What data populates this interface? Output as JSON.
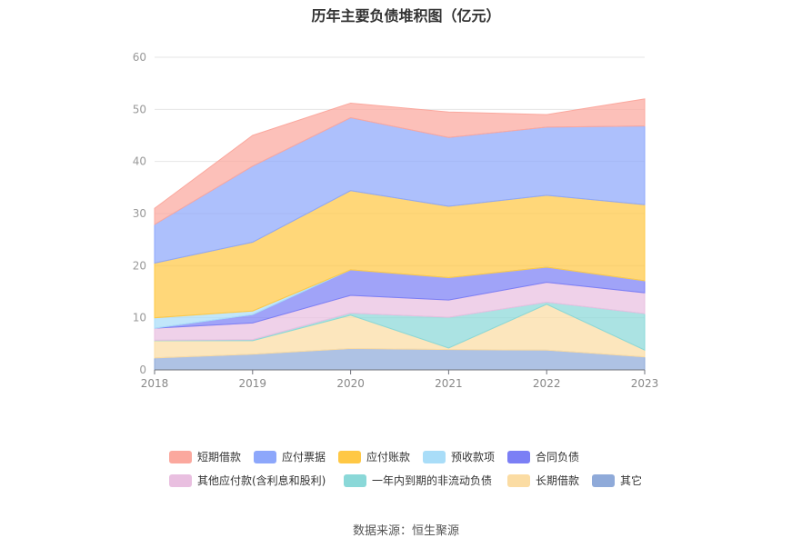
{
  "title": "历年主要负债堆积图（亿元）",
  "source": "数据来源：恒生聚源",
  "chart_data": {
    "type": "area",
    "stacked": true,
    "categories": [
      "2018",
      "2019",
      "2020",
      "2021",
      "2022",
      "2023"
    ],
    "ylim": [
      0,
      60
    ],
    "yticks": [
      0,
      10,
      20,
      30,
      40,
      50,
      60
    ],
    "grid": true,
    "legend_position": "bottom",
    "series": [
      {
        "name": "其它",
        "color": "#8faad9",
        "values": [
          2.3,
          3.0,
          4.1,
          3.9,
          3.8,
          2.5
        ]
      },
      {
        "name": "长期借款",
        "color": "#fbdca3",
        "values": [
          3.3,
          2.6,
          6.4,
          0.3,
          8.8,
          1.3
        ]
      },
      {
        "name": "一年内到期的非流动负债",
        "color": "#8ad8d8",
        "values": [
          0.1,
          0.2,
          0.4,
          5.9,
          0.4,
          7.0
        ]
      },
      {
        "name": "其他应付款(含利息和股利)",
        "color": "#e9bfe0",
        "values": [
          2.3,
          3.2,
          3.4,
          3.3,
          3.8,
          4.0
        ]
      },
      {
        "name": "合同负债",
        "color": "#7b7ff5",
        "values": [
          0.0,
          1.6,
          4.9,
          4.3,
          2.9,
          2.3
        ]
      },
      {
        "name": "预收款项",
        "color": "#a9ddf8",
        "values": [
          2.0,
          0.7,
          0.0,
          0.0,
          0.0,
          0.0
        ]
      },
      {
        "name": "应付账款",
        "color": "#ffc845",
        "values": [
          10.5,
          13.2,
          15.2,
          13.7,
          13.8,
          14.6
        ]
      },
      {
        "name": "应付票据",
        "color": "#8da7fb",
        "values": [
          7.4,
          14.6,
          14.0,
          13.2,
          13.1,
          15.1
        ]
      },
      {
        "name": "短期借款",
        "color": "#fba89e",
        "values": [
          3.1,
          5.9,
          2.8,
          4.9,
          2.4,
          5.2
        ]
      }
    ]
  },
  "legend": {
    "items": [
      {
        "label": "短期借款",
        "color": "#fba89e"
      },
      {
        "label": "应付票据",
        "color": "#8da7fb"
      },
      {
        "label": "应付账款",
        "color": "#ffc845"
      },
      {
        "label": "预收款项",
        "color": "#a9ddf8"
      },
      {
        "label": "合同负债",
        "color": "#7b7ff5"
      },
      {
        "label": "其他应付款(含利息和股利)",
        "color": "#e9bfe0"
      },
      {
        "label": "一年内到期的非流动负债",
        "color": "#8ad8d8"
      },
      {
        "label": "长期借款",
        "color": "#fbdca3"
      },
      {
        "label": "其它",
        "color": "#8faad9"
      }
    ]
  }
}
